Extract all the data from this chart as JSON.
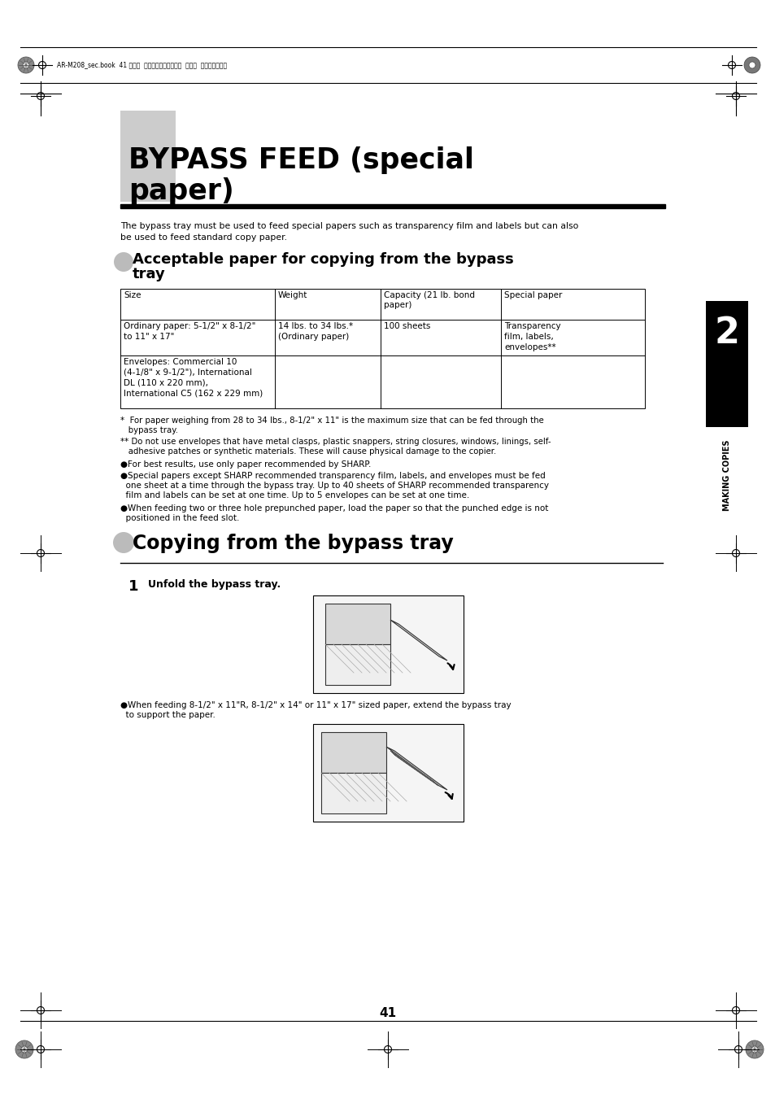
{
  "bg_color": "#ffffff",
  "header_text": "AR-M208_sec.book  41 ページ  ２００２年６月１３日  木曜日  午後２時３７分",
  "main_title_line1": "BYPASS FEED (special",
  "main_title_line2": "paper)",
  "title_bar_color": "#cccccc",
  "intro_text_line1": "The bypass tray must be used to feed special papers such as transparency film and labels but can also",
  "intro_text_line2": "be used to feed standard copy paper.",
  "section1_title_line1": "Acceptable paper for copying from the bypass",
  "section1_title_line2": "tray",
  "table_headers": [
    "Size",
    "Weight",
    "Capacity (21 lb. bond\npaper)",
    "Special paper"
  ],
  "table_row1_col1": "Ordinary paper: 5-1/2\" x 8-1/2\"\nto 11\" x 17\"",
  "table_row1_col2": "14 lbs. to 34 lbs.*\n(Ordinary paper)",
  "table_row1_col3": "100 sheets",
  "table_row1_col4": "Transparency\nfilm, labels,\nenvelopes**",
  "table_row2_col1": "Envelopes: Commercial 10\n(4-1/8\" x 9-1/2\"), International\nDL (110 x 220 mm),\nInternational C5 (162 x 229 mm)",
  "footnote1_line1": "*  For paper weighing from 28 to 34 lbs., 8-1/2\" x 11\" is the maximum size that can be fed through the",
  "footnote1_line2": "   bypass tray.",
  "footnote2_line1": "** Do not use envelopes that have metal clasps, plastic snappers, string closures, windows, linings, self-",
  "footnote2_line2": "   adhesive patches or synthetic materials. These will cause physical damage to the copier.",
  "bullet1": "●For best results, use only paper recommended by SHARP.",
  "bullet2_line1": "●Special papers except SHARP recommended transparency film, labels, and envelopes must be fed",
  "bullet2_line2": "  one sheet at a time through the bypass tray. Up to 40 sheets of SHARP recommended transparency",
  "bullet2_line3": "  film and labels can be set at one time. Up to 5 envelopes can be set at one time.",
  "bullet3_line1": "●When feeding two or three hole prepunched paper, load the paper so that the punched edge is not",
  "bullet3_line2": "  positioned in the feed slot.",
  "section2_title": "Copying from the bypass tray",
  "step1_text": "Unfold the bypass tray.",
  "step1_note_line1": "●When feeding 8-1/2\" x 11\"R, 8-1/2\" x 14\" or 11\" x 17\" sized paper, extend the bypass tray",
  "step1_note_line2": "  to support the paper.",
  "sidebar_num": "2",
  "sidebar_label": "MAKING COPIES",
  "page_num": "41"
}
